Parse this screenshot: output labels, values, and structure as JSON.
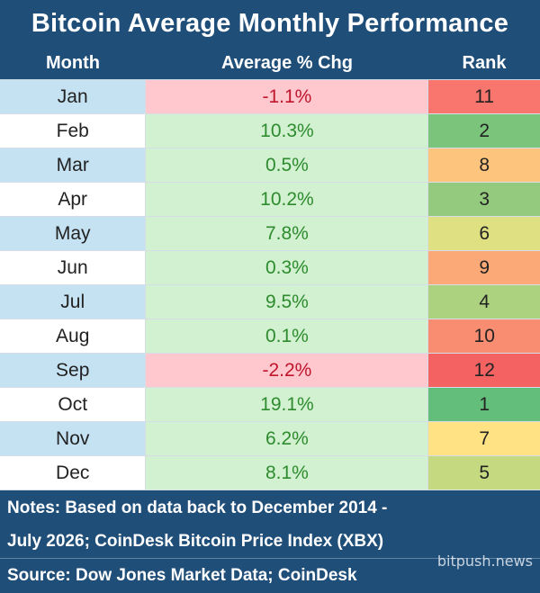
{
  "title": "Bitcoin Average Monthly Performance",
  "headers": {
    "month": "Month",
    "avg": "Average % Chg",
    "rank": "Rank"
  },
  "colors": {
    "background": "#1f4e79",
    "month_cell_blue": "#c5e2f3",
    "month_cell_white": "#ffffff",
    "positive_cell": "#d1f1d1",
    "negative_cell": "#ffc7ce",
    "positive_text": "#2e8b2e",
    "negative_text": "#c0152b"
  },
  "chart_data": {
    "type": "table",
    "title": "Bitcoin Average Monthly Performance",
    "columns": [
      "Month",
      "Average % Chg",
      "Rank"
    ],
    "rows": [
      {
        "month": "Jan",
        "avg": "-1.1%",
        "avg_value": -1.1,
        "rank": "11",
        "rank_value": 11
      },
      {
        "month": "Feb",
        "avg": "10.3%",
        "avg_value": 10.3,
        "rank": "2",
        "rank_value": 2
      },
      {
        "month": "Mar",
        "avg": "0.5%",
        "avg_value": 0.5,
        "rank": "8",
        "rank_value": 8
      },
      {
        "month": "Apr",
        "avg": "10.2%",
        "avg_value": 10.2,
        "rank": "3",
        "rank_value": 3
      },
      {
        "month": "May",
        "avg": "7.8%",
        "avg_value": 7.8,
        "rank": "6",
        "rank_value": 6
      },
      {
        "month": "Jun",
        "avg": "0.3%",
        "avg_value": 0.3,
        "rank": "9",
        "rank_value": 9
      },
      {
        "month": "Jul",
        "avg": "9.5%",
        "avg_value": 9.5,
        "rank": "4",
        "rank_value": 4
      },
      {
        "month": "Aug",
        "avg": "0.1%",
        "avg_value": 0.1,
        "rank": "10",
        "rank_value": 10
      },
      {
        "month": "Sep",
        "avg": "-2.2%",
        "avg_value": -2.2,
        "rank": "12",
        "rank_value": 12
      },
      {
        "month": "Oct",
        "avg": "19.1%",
        "avg_value": 19.1,
        "rank": "1",
        "rank_value": 1
      },
      {
        "month": "Nov",
        "avg": "6.2%",
        "avg_value": 6.2,
        "rank": "7",
        "rank_value": 7
      },
      {
        "month": "Dec",
        "avg": "8.1%",
        "avg_value": 8.1,
        "rank": "5",
        "rank_value": 5
      }
    ],
    "rank_colors": {
      "1": "#63be7b",
      "2": "#7bc47c",
      "3": "#94ca7d",
      "4": "#acd17f",
      "5": "#c5d980",
      "6": "#dee082",
      "7": "#fee283",
      "8": "#fdc47d",
      "9": "#fba977",
      "10": "#f98d72",
      "11": "#f8766d",
      "12": "#f56262"
    }
  },
  "notes": {
    "line1": "Notes: Based on data back to December 2014 -",
    "line2": "July 2026; CoinDesk Bitcoin Price Index (XBX)",
    "source": "Source: Dow Jones Market Data; CoinDesk"
  },
  "watermark": "bitpush.news"
}
